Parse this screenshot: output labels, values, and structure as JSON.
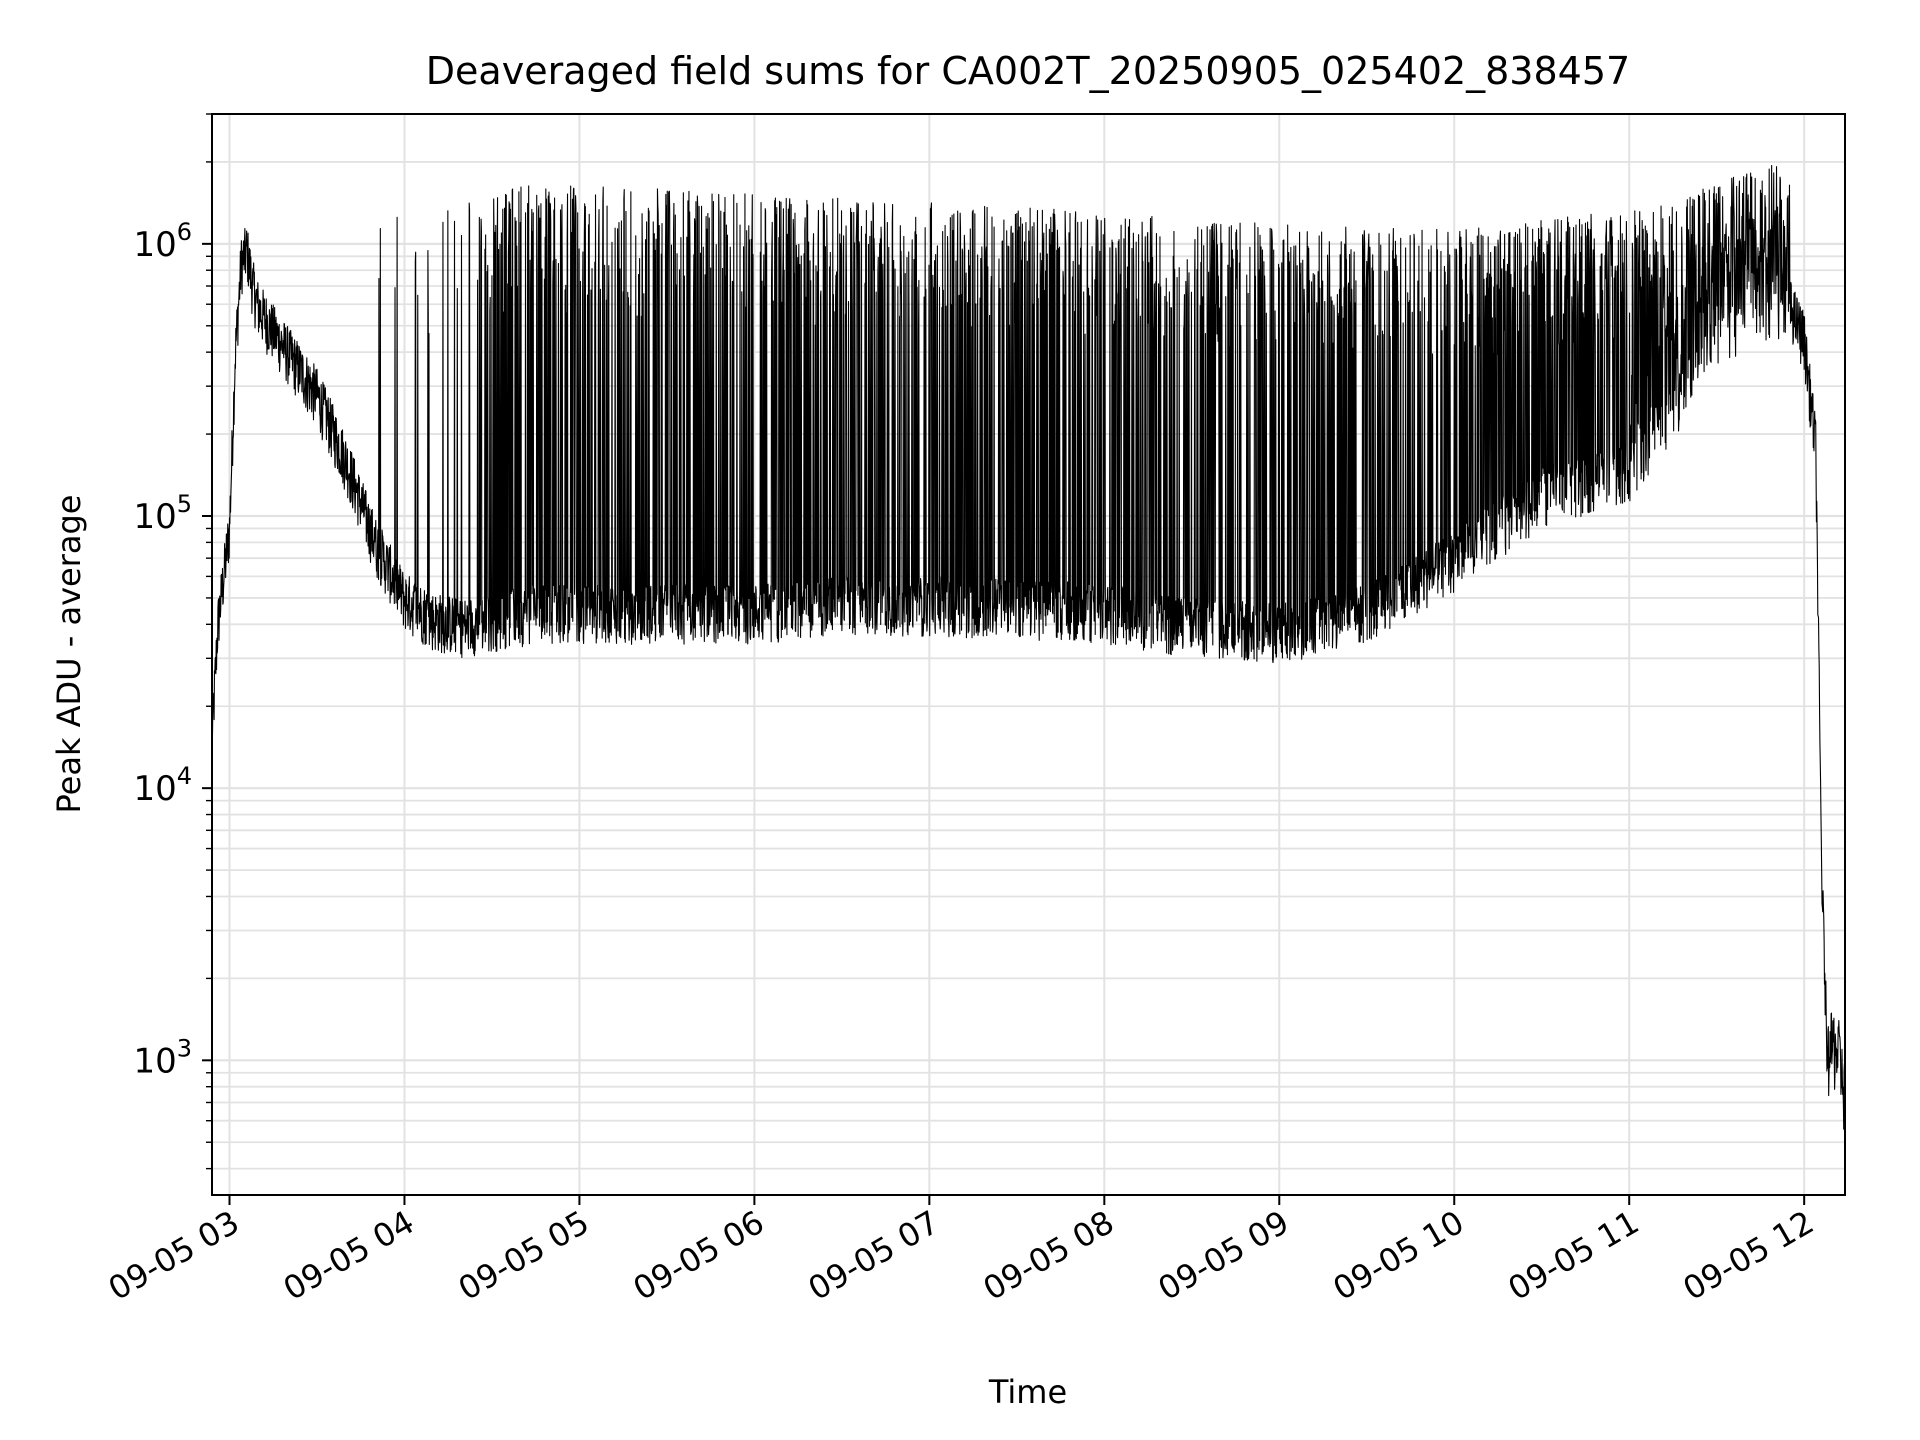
{
  "chart_data": {
    "type": "line",
    "title": "Deaveraged field sums for CA002T_20250905_025402_838457",
    "xlabel": "Time",
    "ylabel": "Peak ADU - average",
    "yscale": "log",
    "x_range": [
      "2025-09-05 02:54",
      "2025-09-05 12:14"
    ],
    "ylim": [
      320,
      3000000
    ],
    "x_ticks": [
      "09-05 03",
      "09-05 04",
      "09-05 05",
      "09-05 06",
      "09-05 07",
      "09-05 08",
      "09-05 09",
      "09-05 10",
      "09-05 11",
      "09-05 12"
    ],
    "y_ticks": [
      {
        "base": "10",
        "exp": "3",
        "value": 1000
      },
      {
        "base": "10",
        "exp": "4",
        "value": 10000
      },
      {
        "base": "10",
        "exp": "5",
        "value": 100000
      },
      {
        "base": "10",
        "exp": "6",
        "value": 1000000
      }
    ],
    "grid": true,
    "line_color": "#000000",
    "series": [
      {
        "x": [
          "02:54",
          "02:56",
          "02:58",
          "03:00",
          "03:02",
          "03:04",
          "03:06",
          "03:08",
          "03:10",
          "03:15",
          "03:20",
          "03:30",
          "03:40",
          "03:50",
          "04:00",
          "04:10",
          "04:20",
          "04:30",
          "04:45",
          "05:00",
          "05:30",
          "06:00",
          "06:30",
          "07:00",
          "07:30",
          "08:00",
          "08:30",
          "09:00",
          "09:30",
          "10:00",
          "10:30",
          "11:00",
          "11:15",
          "11:30",
          "11:45",
          "11:55",
          "12:00",
          "12:04",
          "12:06",
          "12:08",
          "12:10",
          "12:12",
          "12:14"
        ],
        "y": [
          15000,
          40000,
          60000,
          90000,
          400000,
          850000,
          950000,
          700000,
          580000,
          480000,
          400000,
          280000,
          160000,
          80000,
          50000,
          42000,
          40000,
          42000,
          45000,
          45000,
          45000,
          45000,
          48000,
          48000,
          47000,
          45000,
          40000,
          38000,
          45000,
          70000,
          120000,
          150000,
          250000,
          450000,
          550000,
          600000,
          450000,
          180000,
          5000,
          1000,
          1100,
          1000,
          700
        ],
        "spikes_top": [
          1500000,
          1200000,
          1600000,
          1500000,
          1400000,
          1300000,
          1200000,
          1100000,
          1100000,
          1300000,
          2000000
        ]
      }
    ]
  }
}
